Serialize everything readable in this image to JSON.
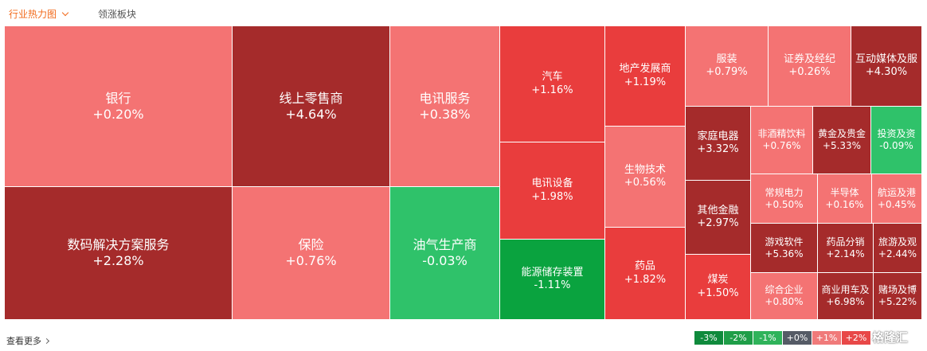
{
  "tabs": {
    "heatmap": "行业热力图",
    "leading": "领涨板块"
  },
  "footer": {
    "more": "查看更多"
  },
  "legend": [
    {
      "label": "-3%",
      "color": "#0f8a3c"
    },
    {
      "label": "-2%",
      "color": "#1f9e48"
    },
    {
      "label": "-1%",
      "color": "#2fb35a"
    },
    {
      "label": "+0%",
      "color": "#555b66"
    },
    {
      "label": "+1%",
      "color": "#f07a7a"
    },
    {
      "label": "+2%",
      "color": "#e84848"
    }
  ],
  "watermark": "格隆汇",
  "colors": {
    "dark_red": "#a52b2b",
    "red": "#e93d3d",
    "light_red": "#f47373",
    "green": "#2fc26a",
    "deep_green": "#0aa33f"
  },
  "chart_data": {
    "type": "heatmap",
    "cells": [
      {
        "name": "银行",
        "change": "+0.20%"
      },
      {
        "name": "数码解决方案服务",
        "change": "+2.28%"
      },
      {
        "name": "线上零售商",
        "change": "+4.64%"
      },
      {
        "name": "保险",
        "change": "+0.76%"
      },
      {
        "name": "电讯服务",
        "change": "+0.38%"
      },
      {
        "name": "油气生产商",
        "change": "-0.03%"
      },
      {
        "name": "汽车",
        "change": "+1.16%"
      },
      {
        "name": "电讯设备",
        "change": "+1.98%"
      },
      {
        "name": "能源储存装置",
        "change": "-1.11%"
      },
      {
        "name": "地产发展商",
        "change": "+1.19%"
      },
      {
        "name": "生物技术",
        "change": "+0.56%"
      },
      {
        "name": "药品",
        "change": "+1.82%"
      },
      {
        "name": "服装",
        "change": "+0.79%"
      },
      {
        "name": "证券及经纪",
        "change": "+0.26%"
      },
      {
        "name": "互动媒体及服",
        "change": "+4.30%"
      },
      {
        "name": "家庭电器",
        "change": "+3.32%"
      },
      {
        "name": "非酒精饮料",
        "change": "+0.76%"
      },
      {
        "name": "黄金及贵金",
        "change": "+5.33%"
      },
      {
        "name": "投资及资",
        "change": "-0.09%"
      },
      {
        "name": "其他金融",
        "change": "+2.97%"
      },
      {
        "name": "常规电力",
        "change": "+0.50%"
      },
      {
        "name": "半导体",
        "change": "+0.16%"
      },
      {
        "name": "航运及港",
        "change": "+0.45%"
      },
      {
        "name": "游戏软件",
        "change": "+5.36%"
      },
      {
        "name": "药品分销",
        "change": "+2.14%"
      },
      {
        "name": "旅游及观",
        "change": "+2.44%"
      },
      {
        "name": "煤炭",
        "change": "+1.50%"
      },
      {
        "name": "综合企业",
        "change": "+0.80%"
      },
      {
        "name": "商业用车及",
        "change": "+6.98%"
      },
      {
        "name": "赌场及博",
        "change": "+5.22%"
      }
    ]
  }
}
